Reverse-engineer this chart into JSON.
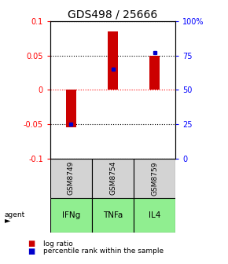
{
  "title": "GDS498 / 25666",
  "samples": [
    "GSM8749",
    "GSM8754",
    "GSM8759"
  ],
  "agents": [
    "IFNg",
    "TNFa",
    "IL4"
  ],
  "log_ratios": [
    -0.055,
    0.085,
    0.05
  ],
  "percentiles": [
    0.25,
    0.65,
    0.77
  ],
  "ylim_left": [
    -0.1,
    0.1
  ],
  "ylim_right": [
    0.0,
    1.0
  ],
  "yticks_left": [
    -0.1,
    -0.05,
    0.0,
    0.05,
    0.1
  ],
  "ytick_labels_left": [
    "-0.1",
    "-0.05",
    "0",
    "0.05",
    "0.1"
  ],
  "yticks_right": [
    0.0,
    0.25,
    0.5,
    0.75,
    1.0
  ],
  "ytick_labels_right": [
    "0",
    "25",
    "50",
    "75",
    "100%"
  ],
  "bar_color": "#cc0000",
  "dot_color": "#0000cc",
  "agent_bg_color": "#90ee90",
  "sample_bg_color": "#d3d3d3",
  "bar_width": 0.25,
  "title_fontsize": 10,
  "tick_fontsize": 7,
  "label_fontsize": 7,
  "legend_fontsize": 6.5
}
